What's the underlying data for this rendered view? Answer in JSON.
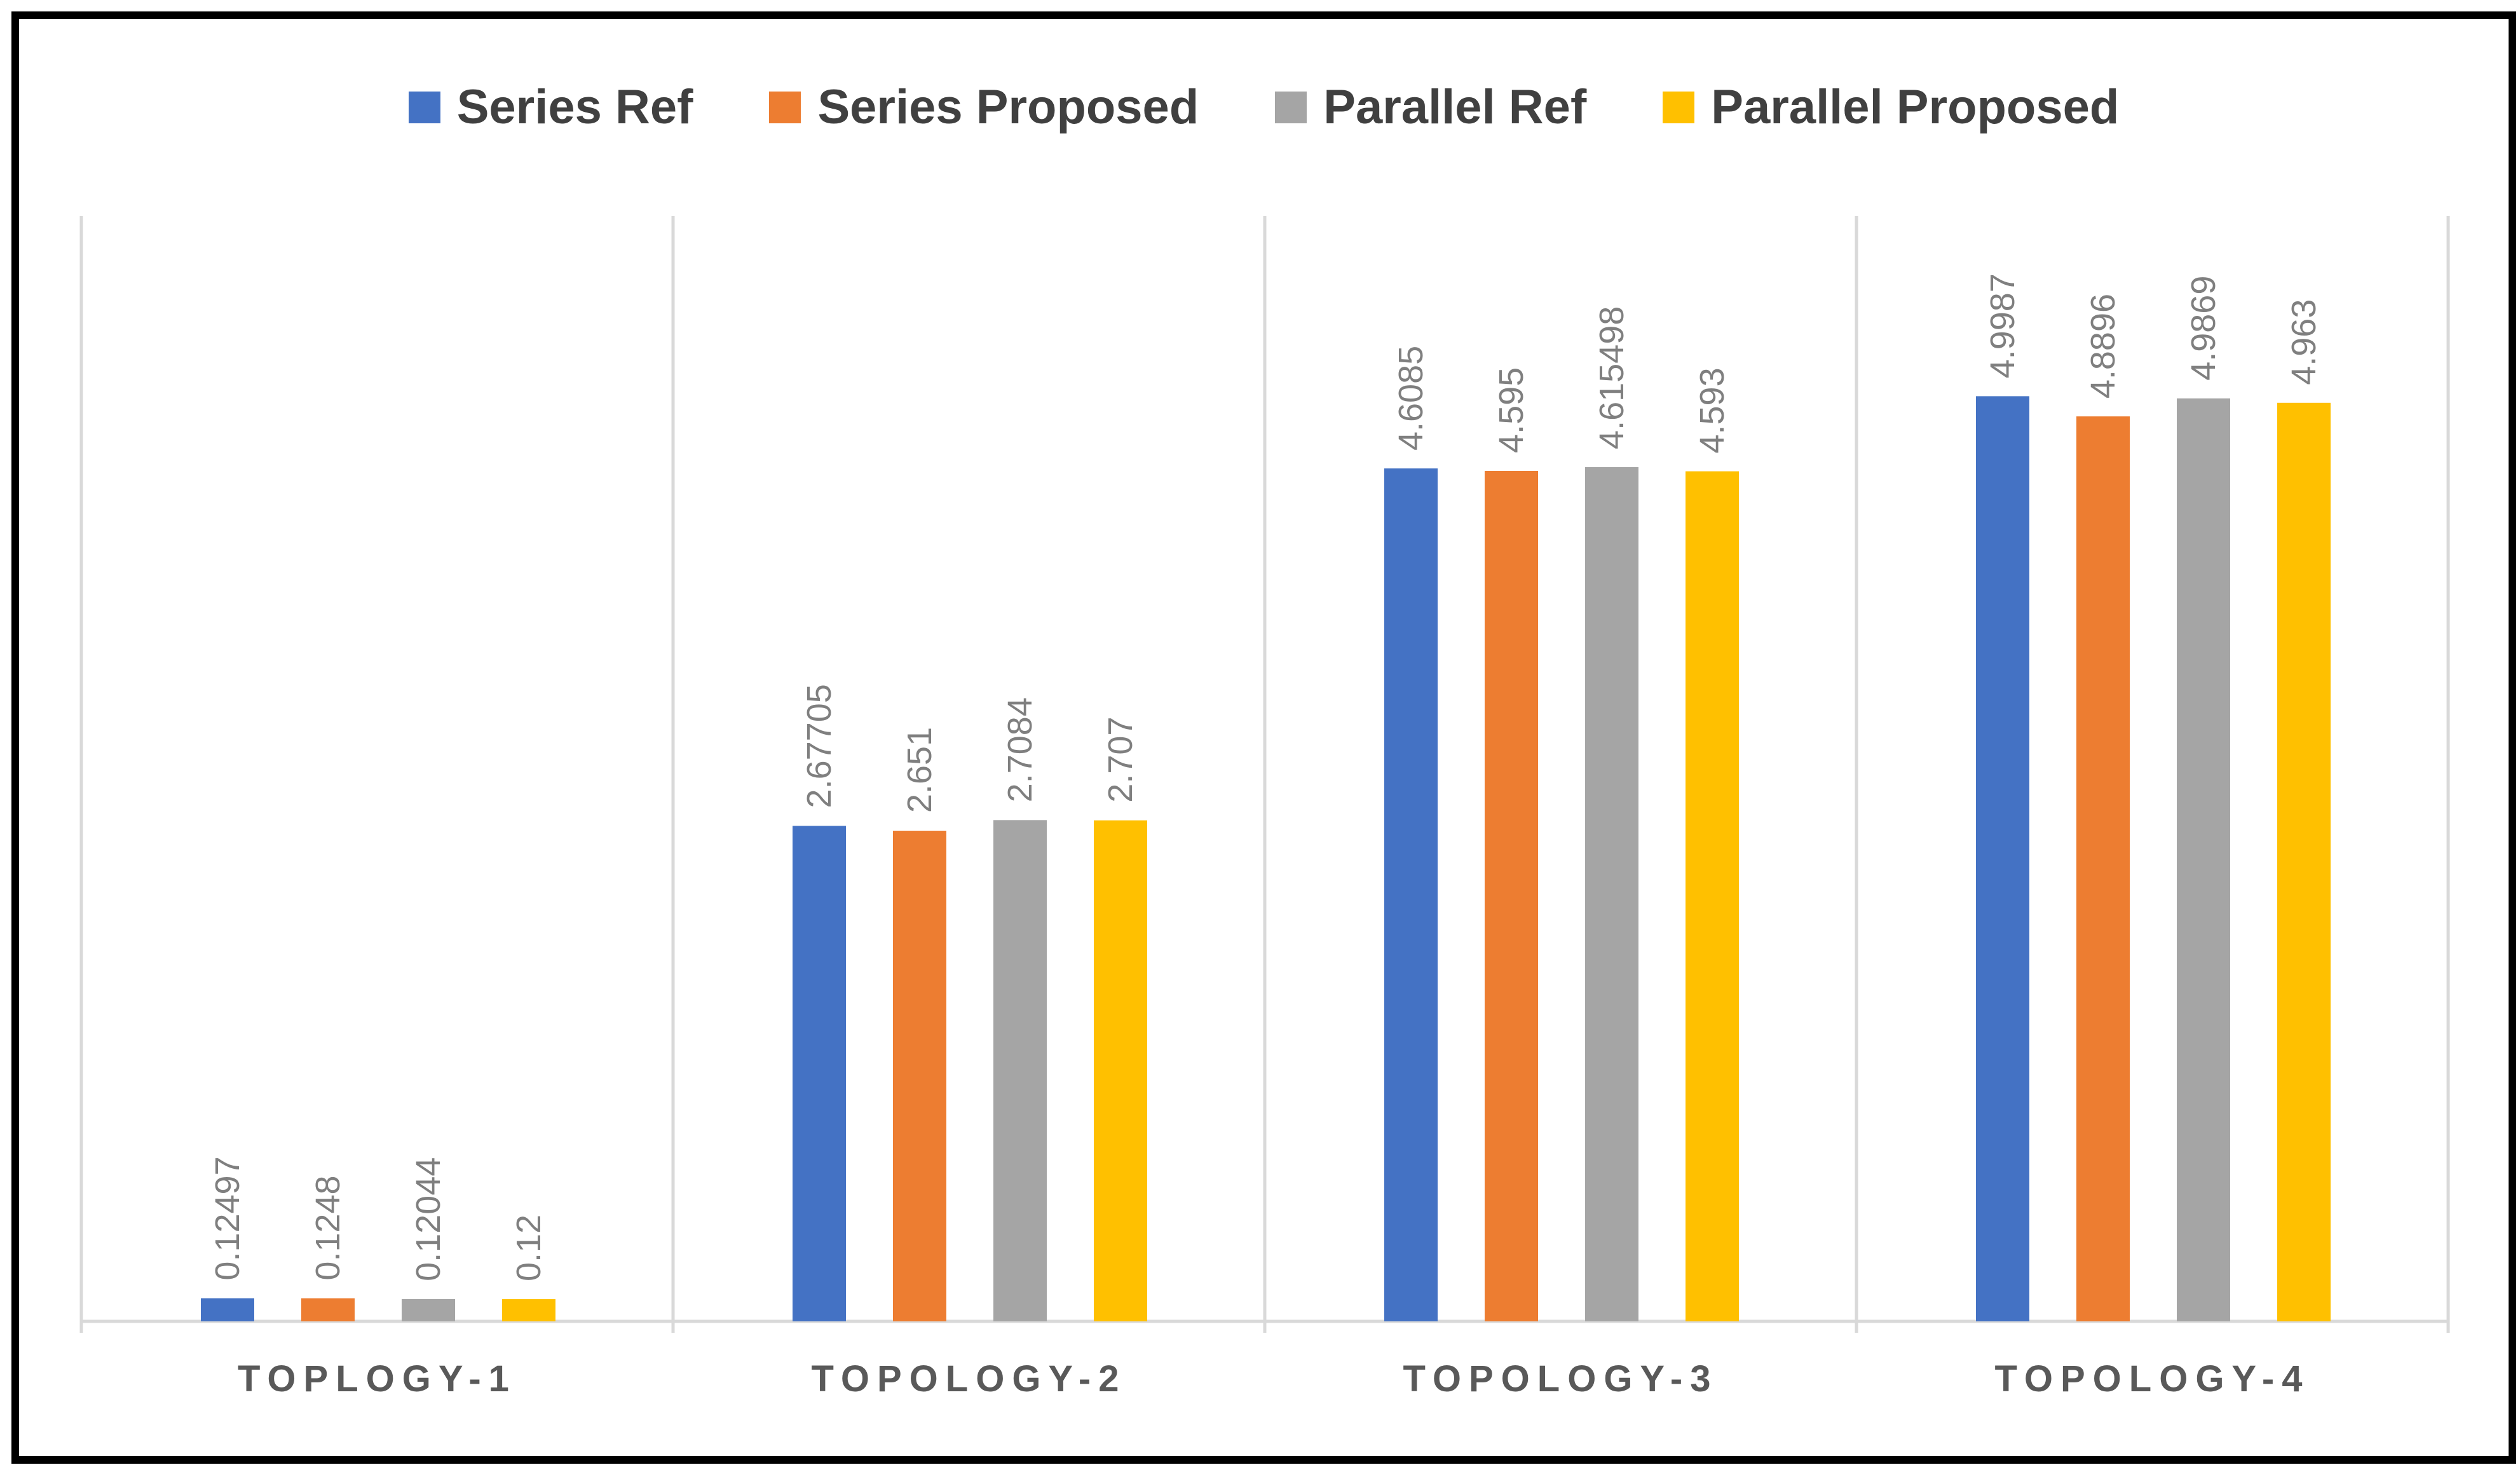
{
  "chart_data": {
    "type": "bar",
    "title": "",
    "xlabel": "",
    "ylabel": "",
    "ylim": [
      0,
      5.6
    ],
    "grid": false,
    "legend_position": "top",
    "categories": [
      "TOPLOGY-1",
      "TOPOLOGY-2",
      "TOPOLOGY-3",
      "TOPOLOGY-4"
    ],
    "series": [
      {
        "name": "Series Ref",
        "color": "#4472C4",
        "values": [
          0.12497,
          2.67705,
          4.6085,
          4.9987
        ],
        "labels": [
          "0.12497",
          "2.67705",
          "4.6085",
          "4.9987"
        ]
      },
      {
        "name": "Series Proposed",
        "color": "#ED7D31",
        "values": [
          0.1248,
          2.651,
          4.595,
          4.8896
        ],
        "labels": [
          "0.1248",
          "2.651",
          "4.595",
          "4.8896"
        ]
      },
      {
        "name": "Parallel Ref",
        "color": "#A5A5A5",
        "values": [
          0.12044,
          2.7084,
          4.615498,
          4.9869
        ],
        "labels": [
          "0.12044",
          "2.7084",
          "4.615498",
          "4.9869"
        ]
      },
      {
        "name": "Parallel Proposed",
        "color": "#FFC000",
        "values": [
          0.12,
          2.707,
          4.593,
          4.963
        ],
        "labels": [
          "0.12",
          "2.707",
          "4.593",
          "4.963"
        ]
      }
    ]
  }
}
